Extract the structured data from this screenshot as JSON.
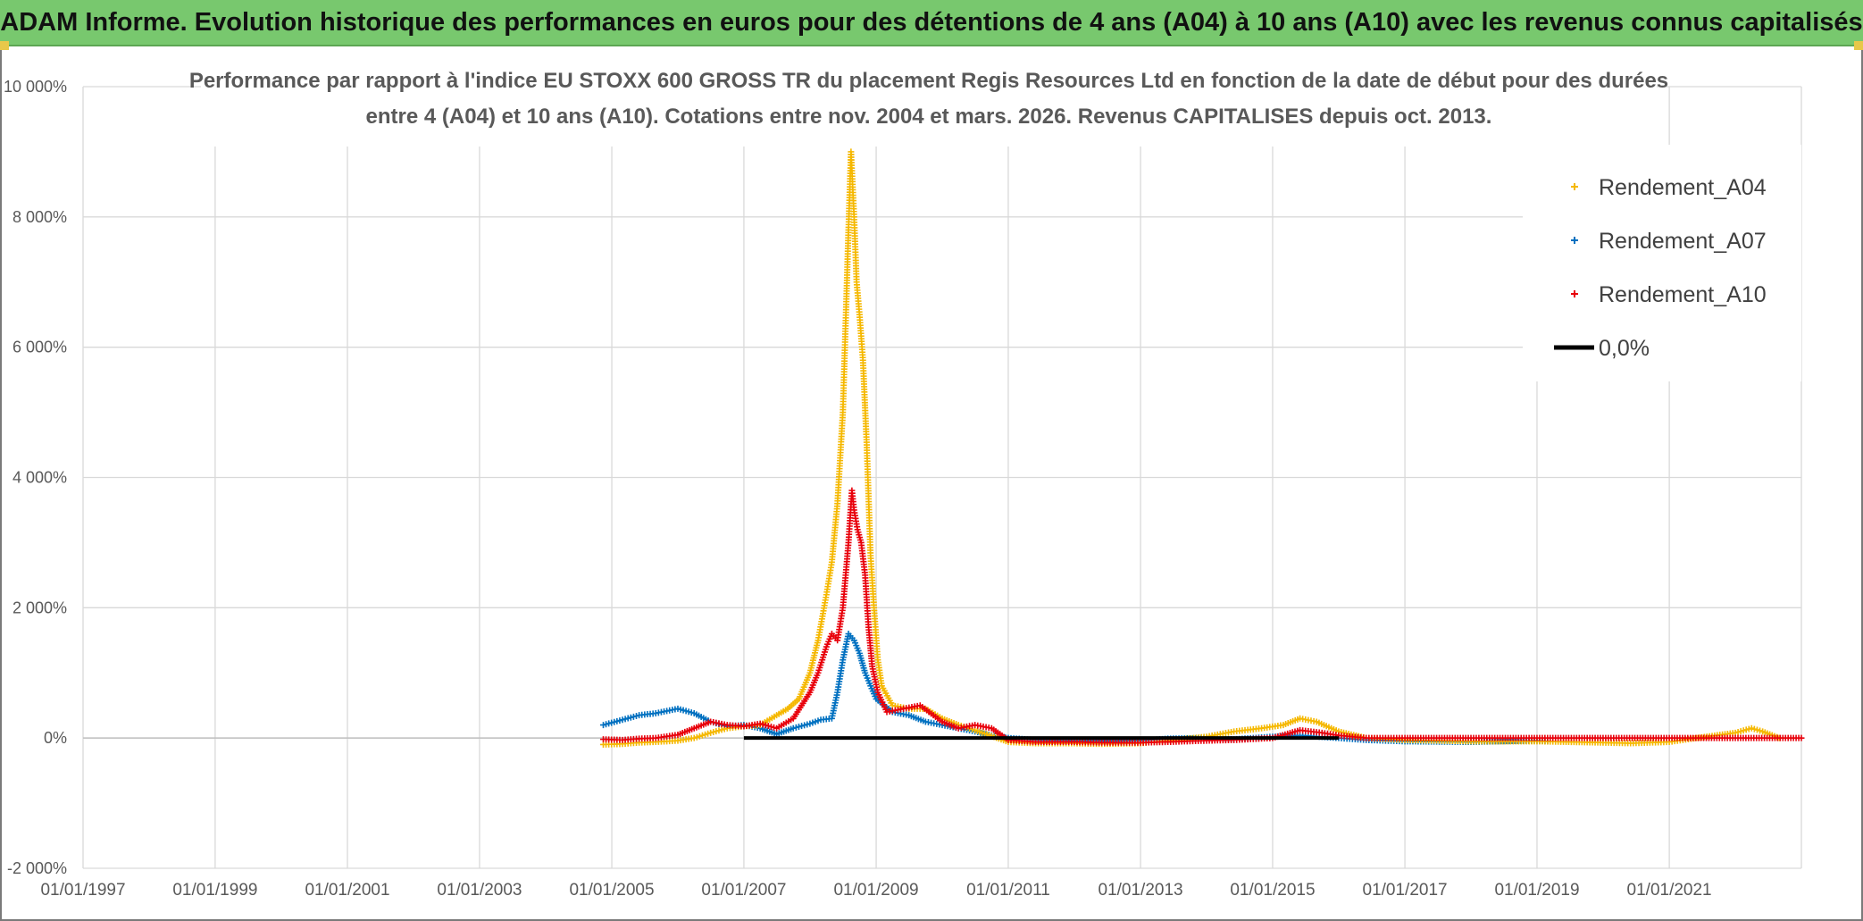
{
  "banner": {
    "title": "ADAM Informe. Evolution historique des performances en euros pour des détentions de 4 ans (A04) à 10 ans (A10) avec les revenus connus capitalisés"
  },
  "colors": {
    "banner_bg": "#78c86e",
    "A04": "#f5b800",
    "A07": "#0070c0",
    "A10": "#e8000b",
    "zero": "#000000",
    "grid": "#d9d9d9"
  },
  "chart_data": {
    "type": "scatter",
    "title": [
      "Performance par rapport à l'indice EU STOXX 600 GROSS TR  du placement Regis Resources Ltd en fonction de la date de début pour des durées",
      "entre 4 (A04) et 10 ans (A10). Cotations entre nov. 2004 et mars. 2026. Revenus CAPITALISES depuis oct. 2013."
    ],
    "x_axis": {
      "type": "date",
      "range": [
        "1997-01-01",
        "2023-01-01"
      ],
      "tick_labels": [
        "01/01/1997",
        "01/01/1999",
        "01/01/2001",
        "01/01/2003",
        "01/01/2005",
        "01/01/2007",
        "01/01/2009",
        "01/01/2011",
        "01/01/2013",
        "01/01/2015",
        "01/01/2017",
        "01/01/2019",
        "01/01/2021"
      ]
    },
    "y_axis": {
      "range": [
        -2000,
        10000
      ],
      "unit": "%",
      "ticks": [
        -2000,
        0,
        2000,
        4000,
        6000,
        8000,
        10000
      ],
      "tick_labels": [
        "-2 000%",
        "0%",
        "2 000%",
        "4 000%",
        "6 000%",
        "8 000%",
        "10 000%"
      ]
    },
    "grid": true,
    "legend_position": "top-right",
    "legend": [
      "Rendement_A04",
      "Rendement_A07",
      "Rendement_A10",
      "0,0%"
    ],
    "series": [
      {
        "name": "Rendement_A04",
        "marker": "+",
        "points": [
          [
            "2004-11-15",
            -100
          ],
          [
            "2005-03-01",
            -90
          ],
          [
            "2005-06-01",
            -70
          ],
          [
            "2005-09-01",
            -60
          ],
          [
            "2006-01-01",
            -40
          ],
          [
            "2006-04-01",
            0
          ],
          [
            "2006-07-01",
            80
          ],
          [
            "2006-10-01",
            150
          ],
          [
            "2007-01-01",
            180
          ],
          [
            "2007-04-01",
            200
          ],
          [
            "2007-07-01",
            350
          ],
          [
            "2007-09-01",
            450
          ],
          [
            "2007-11-01",
            600
          ],
          [
            "2008-01-01",
            1000
          ],
          [
            "2008-02-15",
            1500
          ],
          [
            "2008-04-01",
            2200
          ],
          [
            "2008-05-01",
            2700
          ],
          [
            "2008-06-01",
            3600
          ],
          [
            "2008-07-01",
            5000
          ],
          [
            "2008-07-20",
            6700
          ],
          [
            "2008-08-01",
            7800
          ],
          [
            "2008-08-15",
            9000
          ],
          [
            "2008-09-01",
            8000
          ],
          [
            "2008-09-15",
            7000
          ],
          [
            "2008-10-01",
            6500
          ],
          [
            "2008-10-20",
            5800
          ],
          [
            "2008-11-10",
            4500
          ],
          [
            "2008-12-01",
            2800
          ],
          [
            "2008-12-20",
            2000
          ],
          [
            "2009-01-10",
            1200
          ],
          [
            "2009-02-01",
            800
          ],
          [
            "2009-04-01",
            500
          ],
          [
            "2009-07-01",
            450
          ],
          [
            "2009-10-01",
            450
          ],
          [
            "2010-01-01",
            300
          ],
          [
            "2010-04-01",
            200
          ],
          [
            "2010-07-01",
            120
          ],
          [
            "2010-10-01",
            30
          ],
          [
            "2011-01-01",
            -60
          ],
          [
            "2011-06-01",
            -80
          ],
          [
            "2012-01-01",
            -80
          ],
          [
            "2012-06-01",
            -90
          ],
          [
            "2013-01-01",
            -80
          ],
          [
            "2013-06-01",
            -40
          ],
          [
            "2014-01-01",
            20
          ],
          [
            "2014-06-01",
            100
          ],
          [
            "2014-11-01",
            150
          ],
          [
            "2015-03-01",
            200
          ],
          [
            "2015-06-01",
            300
          ],
          [
            "2015-09-01",
            250
          ],
          [
            "2016-01-01",
            100
          ],
          [
            "2016-06-01",
            0
          ],
          [
            "2017-01-01",
            -30
          ],
          [
            "2018-01-01",
            -50
          ],
          [
            "2019-01-01",
            -50
          ],
          [
            "2020-01-01",
            -70
          ],
          [
            "2020-06-01",
            -80
          ],
          [
            "2021-01-01",
            -60
          ],
          [
            "2021-06-01",
            0
          ],
          [
            "2022-01-01",
            80
          ],
          [
            "2022-04-01",
            150
          ],
          [
            "2022-06-01",
            100
          ],
          [
            "2022-09-01",
            0
          ]
        ]
      },
      {
        "name": "Rendement_A07",
        "marker": "+",
        "points": [
          [
            "2004-11-15",
            200
          ],
          [
            "2005-03-01",
            280
          ],
          [
            "2005-06-01",
            350
          ],
          [
            "2005-09-01",
            380
          ],
          [
            "2006-01-01",
            450
          ],
          [
            "2006-04-01",
            380
          ],
          [
            "2006-07-01",
            250
          ],
          [
            "2006-10-01",
            180
          ],
          [
            "2007-01-01",
            200
          ],
          [
            "2007-04-01",
            150
          ],
          [
            "2007-07-01",
            60
          ],
          [
            "2007-10-01",
            150
          ],
          [
            "2008-01-01",
            220
          ],
          [
            "2008-03-01",
            280
          ],
          [
            "2008-05-01",
            300
          ],
          [
            "2008-06-01",
            700
          ],
          [
            "2008-07-01",
            1200
          ],
          [
            "2008-08-01",
            1600
          ],
          [
            "2008-09-01",
            1500
          ],
          [
            "2008-10-01",
            1300
          ],
          [
            "2008-11-01",
            1000
          ],
          [
            "2008-12-01",
            800
          ],
          [
            "2009-01-01",
            600
          ],
          [
            "2009-04-01",
            400
          ],
          [
            "2009-07-01",
            350
          ],
          [
            "2009-10-01",
            250
          ],
          [
            "2010-01-01",
            200
          ],
          [
            "2010-04-01",
            150
          ],
          [
            "2010-07-01",
            100
          ],
          [
            "2010-10-01",
            40
          ],
          [
            "2011-01-01",
            0
          ],
          [
            "2011-06-01",
            -30
          ],
          [
            "2012-01-01",
            -40
          ],
          [
            "2013-01-01",
            -40
          ],
          [
            "2013-06-01",
            -10
          ],
          [
            "2014-01-01",
            0
          ],
          [
            "2014-06-01",
            -20
          ],
          [
            "2015-01-01",
            20
          ],
          [
            "2015-06-01",
            40
          ],
          [
            "2016-01-01",
            0
          ],
          [
            "2016-06-01",
            -30
          ],
          [
            "2017-01-01",
            -50
          ],
          [
            "2018-01-01",
            -60
          ],
          [
            "2018-06-01",
            -50
          ],
          [
            "2019-01-01",
            -40
          ],
          [
            "2019-03-01",
            -50
          ]
        ]
      },
      {
        "name": "Rendement_A10",
        "marker": "+",
        "points": [
          [
            "2004-11-15",
            -20
          ],
          [
            "2005-03-01",
            -30
          ],
          [
            "2005-06-01",
            -10
          ],
          [
            "2005-09-01",
            0
          ],
          [
            "2006-01-01",
            50
          ],
          [
            "2006-04-01",
            150
          ],
          [
            "2006-07-01",
            250
          ],
          [
            "2006-10-01",
            200
          ],
          [
            "2007-01-01",
            180
          ],
          [
            "2007-04-01",
            220
          ],
          [
            "2007-07-01",
            150
          ],
          [
            "2007-10-01",
            300
          ],
          [
            "2008-01-01",
            700
          ],
          [
            "2008-02-15",
            1000
          ],
          [
            "2008-04-01",
            1400
          ],
          [
            "2008-05-01",
            1600
          ],
          [
            "2008-06-01",
            1500
          ],
          [
            "2008-07-01",
            2000
          ],
          [
            "2008-08-01",
            3000
          ],
          [
            "2008-08-20",
            3800
          ],
          [
            "2008-09-01",
            3500
          ],
          [
            "2008-09-20",
            3200
          ],
          [
            "2008-10-10",
            3000
          ],
          [
            "2008-11-01",
            2500
          ],
          [
            "2008-11-20",
            1700
          ],
          [
            "2008-12-10",
            1100
          ],
          [
            "2009-01-10",
            700
          ],
          [
            "2009-03-01",
            400
          ],
          [
            "2009-06-01",
            450
          ],
          [
            "2009-09-01",
            500
          ],
          [
            "2010-01-01",
            250
          ],
          [
            "2010-04-01",
            150
          ],
          [
            "2010-07-01",
            200
          ],
          [
            "2010-10-01",
            150
          ],
          [
            "2011-01-01",
            -30
          ],
          [
            "2011-06-01",
            -60
          ],
          [
            "2012-01-01",
            -60
          ],
          [
            "2012-06-01",
            -70
          ],
          [
            "2013-01-01",
            -70
          ],
          [
            "2013-06-01",
            -60
          ],
          [
            "2014-01-01",
            -40
          ],
          [
            "2014-06-01",
            -30
          ],
          [
            "2015-01-01",
            0
          ],
          [
            "2015-06-01",
            120
          ],
          [
            "2015-10-01",
            80
          ],
          [
            "2016-01-01",
            40
          ],
          [
            "2016-06-01",
            0
          ],
          [
            "2017-01-01",
            0
          ],
          [
            "2018-01-01",
            0
          ],
          [
            "2019-01-01",
            0
          ],
          [
            "2020-01-01",
            0
          ],
          [
            "2021-01-01",
            0
          ],
          [
            "2022-01-01",
            0
          ],
          [
            "2023-01-01",
            0
          ]
        ]
      },
      {
        "name": "0,0%",
        "type": "line",
        "points": [
          [
            "2007-01-01",
            0
          ],
          [
            "2016-01-01",
            0
          ]
        ]
      }
    ]
  }
}
